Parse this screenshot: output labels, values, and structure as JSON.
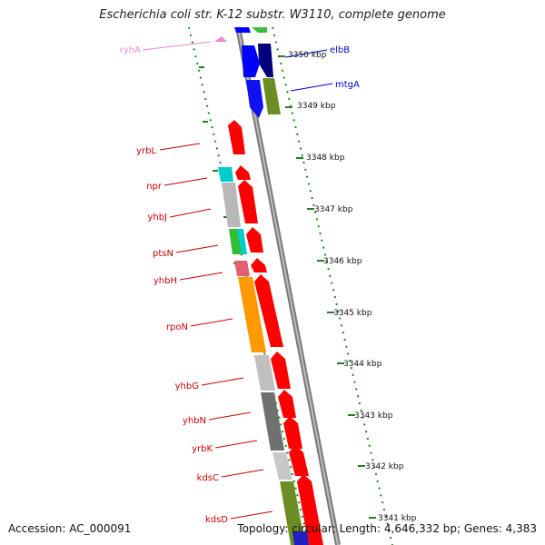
{
  "title": "Escherichia coli str. K-12 substr. W3110, complete genome",
  "footer": {
    "accession": "Accession: AC_000091",
    "summary": "Topology: circular; Length: 4,646,332 bp; Genes: 4,383"
  },
  "colors": {
    "background": "#ffffff",
    "backbone": "#8c8c8c",
    "dotted_track": "#1a8a1a",
    "gene_label_forward": "#cc0000",
    "gene_label_reverse": "#0000cc",
    "gene_label_rna": "#ee88cc"
  },
  "scale": {
    "unit": "kbp",
    "ticks": [
      {
        "label": "3350 kbp",
        "value": 3350
      },
      {
        "label": "3349 kbp",
        "value": 3349
      },
      {
        "label": "3348 kbp",
        "value": 3348
      },
      {
        "label": "3347 kbp",
        "value": 3347
      },
      {
        "label": "3346 kbp",
        "value": 3346
      },
      {
        "label": "3345 kbp",
        "value": 3345
      },
      {
        "label": "3344 kbp",
        "value": 3344
      },
      {
        "label": "3343 kbp",
        "value": 3343
      },
      {
        "label": "3342 kbp",
        "value": 3342
      },
      {
        "label": "3341 kbp",
        "value": 3341
      }
    ]
  },
  "gene_labels": [
    {
      "name": "ryhA",
      "strand": "rna"
    },
    {
      "name": "elbB",
      "strand": "reverse"
    },
    {
      "name": "mtgA",
      "strand": "reverse"
    },
    {
      "name": "yrbL",
      "strand": "forward"
    },
    {
      "name": "npr",
      "strand": "forward"
    },
    {
      "name": "yhbJ",
      "strand": "forward"
    },
    {
      "name": "ptsN",
      "strand": "forward"
    },
    {
      "name": "yhbH",
      "strand": "forward"
    },
    {
      "name": "rpoN",
      "strand": "forward"
    },
    {
      "name": "yhbG",
      "strand": "forward"
    },
    {
      "name": "yhbN",
      "strand": "forward"
    },
    {
      "name": "yrbK",
      "strand": "forward"
    },
    {
      "name": "kdsC",
      "strand": "forward"
    },
    {
      "name": "kdsD",
      "strand": "forward"
    }
  ]
}
